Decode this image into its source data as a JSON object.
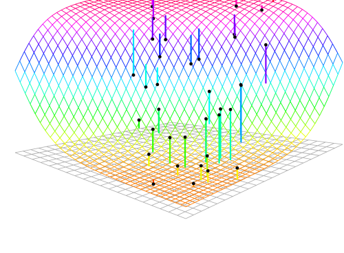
{
  "chart_data": {
    "type": "scatter",
    "subtype": "3d-surface-with-stems",
    "grid": true,
    "axis_ranges": {
      "x": [
        0,
        1
      ],
      "y": [
        0,
        1
      ],
      "z": [
        0,
        1
      ]
    },
    "colormap": [
      "#ff0000",
      "#ff00ff",
      "#0000ff",
      "#00ffff",
      "#00ff00",
      "#ffff00",
      "#ff0000"
    ],
    "grid_color": "#aaaaaa",
    "points": [
      {
        "x": 0.05,
        "y": 0.82,
        "z": 0.83
      },
      {
        "x": 0.12,
        "y": 0.75,
        "z": 0.78
      },
      {
        "x": 0.3,
        "y": 0.55,
        "z": 0.74
      },
      {
        "x": 0.33,
        "y": 0.6,
        "z": 0.73
      },
      {
        "x": 0.45,
        "y": 0.92,
        "z": 0.88
      },
      {
        "x": 0.62,
        "y": 0.97,
        "z": 0.97
      },
      {
        "x": 0.6,
        "y": 0.92,
        "z": 0.88
      },
      {
        "x": 0.55,
        "y": 0.8,
        "z": 0.75
      },
      {
        "x": 0.58,
        "y": 0.77,
        "z": 0.75
      },
      {
        "x": 0.48,
        "y": 0.65,
        "z": 0.62
      },
      {
        "x": 0.47,
        "y": 0.61,
        "z": 0.6
      },
      {
        "x": 0.37,
        "y": 0.52,
        "z": 0.65
      },
      {
        "x": 0.78,
        "y": 0.75,
        "z": 0.75
      },
      {
        "x": 0.78,
        "y": 0.59,
        "z": 0.55
      },
      {
        "x": 0.8,
        "y": 0.57,
        "z": 0.56
      },
      {
        "x": 0.83,
        "y": 0.47,
        "z": 0.45
      },
      {
        "x": 0.79,
        "y": 0.45,
        "z": 0.45
      },
      {
        "x": 0.81,
        "y": 0.42,
        "z": 0.43
      },
      {
        "x": 0.76,
        "y": 0.39,
        "z": 0.4
      },
      {
        "x": 0.85,
        "y": 0.3,
        "z": 0.22
      },
      {
        "x": 0.86,
        "y": 0.25,
        "z": 0.18
      },
      {
        "x": 0.9,
        "y": 0.25,
        "z": 0.16
      },
      {
        "x": 0.98,
        "y": 0.35,
        "z": 0.16
      },
      {
        "x": 0.7,
        "y": 0.12,
        "z": 0.05
      },
      {
        "x": 0.28,
        "y": 0.45,
        "z": 0.52
      },
      {
        "x": 0.38,
        "y": 0.42,
        "z": 0.48
      },
      {
        "x": 0.42,
        "y": 0.45,
        "z": 0.5
      },
      {
        "x": 0.52,
        "y": 0.35,
        "z": 0.4
      },
      {
        "x": 0.55,
        "y": 0.28,
        "z": 0.3
      },
      {
        "x": 0.65,
        "y": 0.28,
        "z": 0.28
      },
      {
        "x": 0.72,
        "y": 0.3,
        "z": 0.3
      },
      {
        "x": 0.6,
        "y": 0.2,
        "z": 0.18
      },
      {
        "x": 0.75,
        "y": 0.22,
        "z": 0.15
      },
      {
        "x": 0.88,
        "y": 0.18,
        "z": 0.1
      },
      {
        "x": 0.66,
        "y": 0.52,
        "z": 0.5
      },
      {
        "x": 0.45,
        "y": 0.3,
        "z": 0.32
      }
    ]
  }
}
